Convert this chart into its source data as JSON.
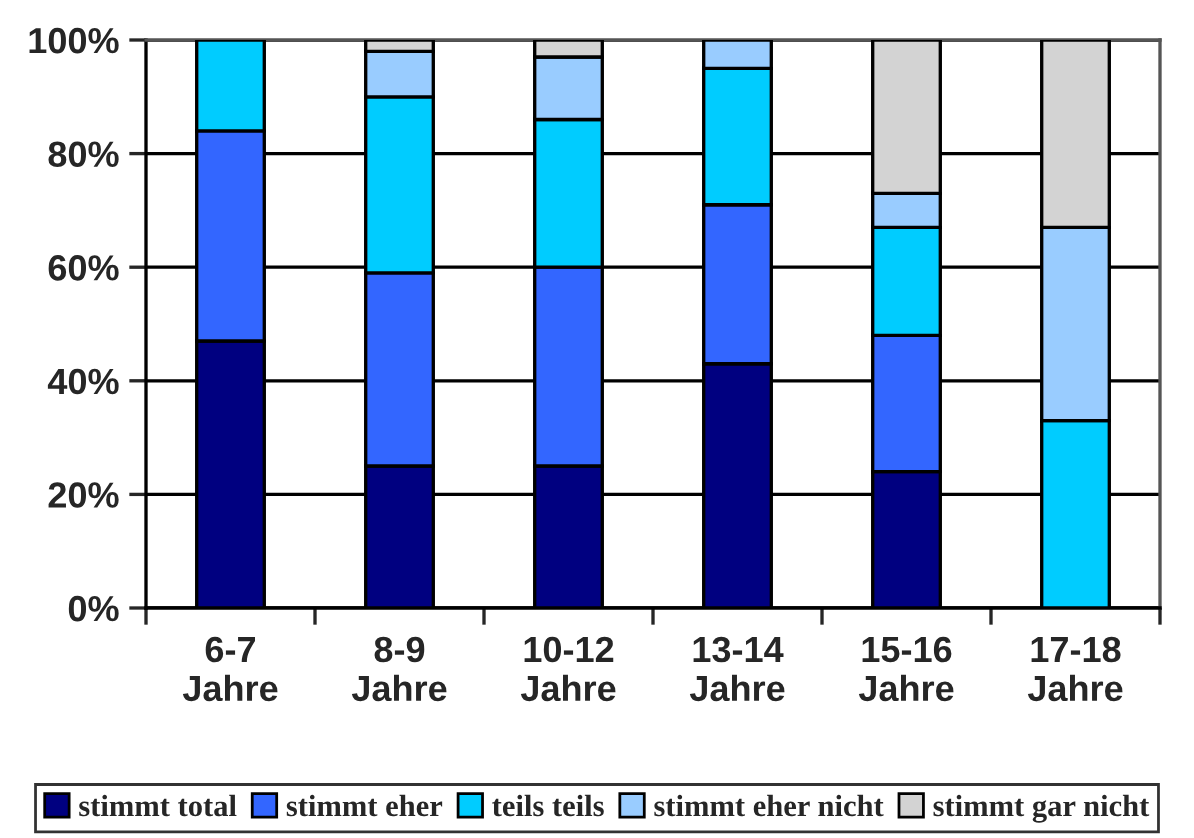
{
  "chart_data": {
    "type": "bar",
    "stacked": true,
    "categories": [
      "6-7\nJahre",
      "8-9\nJahre",
      "10-12\nJahre",
      "13-14\nJahre",
      "15-16\nJahre",
      "17-18\nJahre"
    ],
    "series": [
      {
        "name": "stimmt total",
        "color": "#000080",
        "values": [
          47,
          25,
          25,
          43,
          24,
          0
        ]
      },
      {
        "name": "stimmt eher",
        "color": "#3366ff",
        "values": [
          37,
          34,
          35,
          28,
          24,
          0
        ]
      },
      {
        "name": "teils teils",
        "color": "#00ccff",
        "values": [
          16,
          31,
          26,
          24,
          19,
          33
        ]
      },
      {
        "name": "stimmt eher nicht",
        "color": "#99ccff",
        "values": [
          0,
          8,
          11,
          5,
          6,
          34
        ]
      },
      {
        "name": "stimmt gar nicht",
        "color": "#d3d3d3",
        "values": [
          0,
          2,
          3,
          0,
          27,
          33
        ]
      }
    ],
    "ylim": [
      0,
      100
    ],
    "yticks": [
      {
        "value": 0,
        "label": "0%"
      },
      {
        "value": 20,
        "label": "20%"
      },
      {
        "value": 40,
        "label": "40%"
      },
      {
        "value": 60,
        "label": "60%"
      },
      {
        "value": 80,
        "label": "80%"
      },
      {
        "value": 100,
        "label": "100%"
      }
    ],
    "grid": "y",
    "legend": "bottom"
  }
}
